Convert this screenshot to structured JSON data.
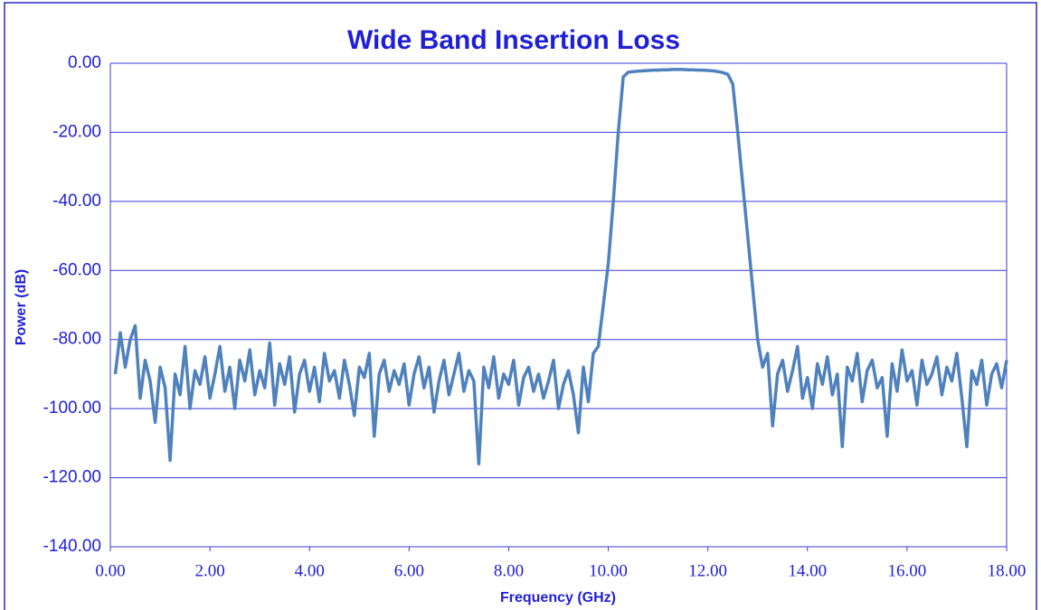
{
  "chart_data": {
    "type": "line",
    "title": "Wide Band Insertion Loss",
    "x_label": "Frequency (GHz)",
    "y_label": "Power (dB)",
    "color": "#4f81bd",
    "grid": true,
    "xlim": [
      0,
      18
    ],
    "ylim": [
      -140,
      0
    ],
    "xticks": [
      {
        "value": 0,
        "label": "0.00"
      },
      {
        "value": 2,
        "label": "2.00"
      },
      {
        "value": 4,
        "label": "4.00"
      },
      {
        "value": 6,
        "label": "6.00"
      },
      {
        "value": 8,
        "label": "8.00"
      },
      {
        "value": 10,
        "label": "10.00"
      },
      {
        "value": 12,
        "label": "12.00"
      },
      {
        "value": 14,
        "label": "14.00"
      },
      {
        "value": 16,
        "label": "16.00"
      },
      {
        "value": 18,
        "label": "18.00"
      }
    ],
    "yticks": [
      {
        "value": 0,
        "label": "0.00"
      },
      {
        "value": -20,
        "label": "-20.00"
      },
      {
        "value": -40,
        "label": "-40.00"
      },
      {
        "value": -60,
        "label": "-60.00"
      },
      {
        "value": -80,
        "label": "-80.00"
      },
      {
        "value": -100,
        "label": "-100.00"
      },
      {
        "value": -120,
        "label": "-120.00"
      },
      {
        "value": -140,
        "label": "-140.00"
      }
    ],
    "x": [
      0.1,
      0.2,
      0.3,
      0.4,
      0.5,
      0.6,
      0.7,
      0.8,
      0.9,
      1.0,
      1.1,
      1.2,
      1.3,
      1.4,
      1.5,
      1.6,
      1.7,
      1.8,
      1.9,
      2.0,
      2.1,
      2.2,
      2.3,
      2.4,
      2.5,
      2.6,
      2.7,
      2.8,
      2.9,
      3.0,
      3.1,
      3.2,
      3.3,
      3.4,
      3.5,
      3.6,
      3.7,
      3.8,
      3.9,
      4.0,
      4.1,
      4.2,
      4.3,
      4.4,
      4.5,
      4.6,
      4.7,
      4.8,
      4.9,
      5.0,
      5.1,
      5.2,
      5.3,
      5.4,
      5.5,
      5.6,
      5.7,
      5.8,
      5.9,
      6.0,
      6.1,
      6.2,
      6.3,
      6.4,
      6.5,
      6.6,
      6.7,
      6.8,
      6.9,
      7.0,
      7.1,
      7.2,
      7.3,
      7.4,
      7.5,
      7.6,
      7.7,
      7.8,
      7.9,
      8.0,
      8.1,
      8.2,
      8.3,
      8.4,
      8.5,
      8.6,
      8.7,
      8.8,
      8.9,
      9.0,
      9.1,
      9.2,
      9.3,
      9.4,
      9.5,
      9.6,
      9.7,
      9.8,
      9.9,
      10.0,
      10.1,
      10.2,
      10.3,
      10.4,
      10.5,
      10.6,
      10.7,
      10.8,
      10.9,
      11.0,
      11.1,
      11.2,
      11.3,
      11.4,
      11.5,
      11.6,
      11.7,
      11.8,
      11.9,
      12.0,
      12.1,
      12.2,
      12.3,
      12.4,
      12.5,
      12.6,
      12.7,
      12.8,
      12.9,
      13.0,
      13.1,
      13.2,
      13.3,
      13.4,
      13.5,
      13.6,
      13.7,
      13.8,
      13.9,
      14.0,
      14.1,
      14.2,
      14.3,
      14.4,
      14.5,
      14.6,
      14.7,
      14.8,
      14.9,
      15.0,
      15.1,
      15.2,
      15.3,
      15.4,
      15.5,
      15.6,
      15.7,
      15.8,
      15.9,
      16.0,
      16.1,
      16.2,
      16.3,
      16.4,
      16.5,
      16.6,
      16.7,
      16.8,
      16.9,
      17.0,
      17.1,
      17.2,
      17.3,
      17.4,
      17.5,
      17.6,
      17.7,
      17.8,
      17.9,
      18.0
    ],
    "values": [
      -90,
      -78,
      -88,
      -80,
      -76,
      -97,
      -86,
      -92,
      -104,
      -88,
      -94,
      -115,
      -90,
      -96,
      -82,
      -100,
      -89,
      -93,
      -85,
      -97,
      -90,
      -82,
      -95,
      -88,
      -100,
      -86,
      -92,
      -83,
      -96,
      -89,
      -94,
      -81,
      -99,
      -87,
      -93,
      -85,
      -101,
      -90,
      -86,
      -95,
      -88,
      -98,
      -84,
      -92,
      -89,
      -97,
      -86,
      -93,
      -102,
      -88,
      -91,
      -84,
      -108,
      -90,
      -86,
      -95,
      -89,
      -93,
      -87,
      -99,
      -90,
      -85,
      -94,
      -88,
      -101,
      -92,
      -86,
      -96,
      -90,
      -84,
      -95,
      -89,
      -92,
      -116,
      -88,
      -94,
      -85,
      -97,
      -90,
      -93,
      -86,
      -99,
      -91,
      -88,
      -95,
      -90,
      -97,
      -92,
      -86,
      -100,
      -93,
      -89,
      -96,
      -107,
      -88,
      -98,
      -84,
      -82,
      -70,
      -58,
      -40,
      -20,
      -4,
      -2.6,
      -2.4,
      -2.3,
      -2.2,
      -2.1,
      -2.0,
      -2.0,
      -1.9,
      -1.9,
      -1.8,
      -1.8,
      -1.8,
      -1.9,
      -1.9,
      -2.0,
      -2.0,
      -2.1,
      -2.2,
      -2.4,
      -2.7,
      -3.2,
      -6,
      -20,
      -35,
      -50,
      -65,
      -80,
      -88,
      -84,
      -105,
      -90,
      -86,
      -95,
      -89,
      -82,
      -97,
      -91,
      -100,
      -87,
      -93,
      -85,
      -96,
      -90,
      -111,
      -88,
      -92,
      -84,
      -98,
      -89,
      -86,
      -94,
      -91,
      -108,
      -87,
      -95,
      -83,
      -92,
      -89,
      -99,
      -86,
      -93,
      -90,
      -85,
      -96,
      -88,
      -92,
      -84,
      -97,
      -111,
      -89,
      -93,
      -86,
      -99,
      -90,
      -87,
      -94,
      -86
    ]
  }
}
